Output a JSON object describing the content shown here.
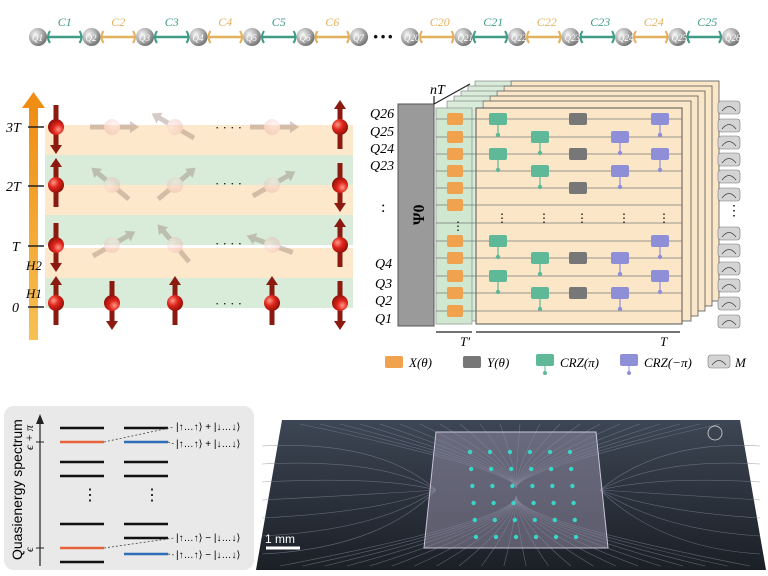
{
  "chain": {
    "left_nodes": [
      "Q1",
      "Q2",
      "Q3",
      "Q4",
      "Q5",
      "Q6",
      "Q7"
    ],
    "left_couplings": [
      "C1",
      "C2",
      "C3",
      "C4",
      "C5",
      "C6"
    ],
    "ellipsis": "···",
    "right_nodes": [
      "Q20",
      "Q21",
      "Q22",
      "Q23",
      "Q24",
      "Q25",
      "Q26"
    ],
    "right_couplings": [
      "C20",
      "C21",
      "C22",
      "C23",
      "C24",
      "C25"
    ],
    "colors": {
      "green": "#3f9c86",
      "gold": "#e3b15c",
      "node": "#9c9c9c"
    }
  },
  "timeline": {
    "y_labels": [
      "3T",
      "2T",
      "T",
      "0"
    ],
    "h_labels": [
      "H2",
      "H1"
    ],
    "ellipsis": "· · · ·",
    "colors": {
      "orange_band": "#fde8cc",
      "green_band": "#d8ecd9",
      "arrow": "#f29b1a",
      "spin": "#d8231f",
      "stem": "#8b1a10"
    }
  },
  "circuit": {
    "qubit_top": [
      "Q26",
      "Q25",
      "Q24",
      "Q23"
    ],
    "qubit_bottom": [
      "Q4",
      "Q3",
      "Q2",
      "Q1"
    ],
    "vertical_dots": ":",
    "psi_label": "Ψ0",
    "nT_label": "nT",
    "T_prime_label": "T′",
    "T_label": "T",
    "legend": [
      {
        "label": "X(θ)",
        "color": "#f0a24f",
        "shape": "box"
      },
      {
        "label": "Y(θ)",
        "color": "#777777",
        "shape": "box"
      },
      {
        "label": "CRZ(π)",
        "color": "#5fb897",
        "shape": "cr"
      },
      {
        "label": "CRZ(−π)",
        "color": "#8f8fd8",
        "shape": "cr"
      },
      {
        "label": "M",
        "color": "#c8c8c8",
        "shape": "meter"
      }
    ]
  },
  "spectrum": {
    "ylabel": "Quasienergy spectrum",
    "upper_label": "ϵ + π",
    "lower_label": "ϵ",
    "annotations": [
      "|↑…↑⟩ + |↓…↓⟩",
      "|↑…↑⟩ + |↓…↓⟩",
      "|↑…↑⟩ − |↓…↓⟩",
      "|↑…↑⟩ − |↓…↓⟩"
    ],
    "dots": "⋮",
    "colors": {
      "orange": "#e8623a",
      "blue": "#2f6fb5",
      "panel": "#e9e9e9"
    }
  },
  "chip": {
    "scale_label": "1 mm"
  }
}
